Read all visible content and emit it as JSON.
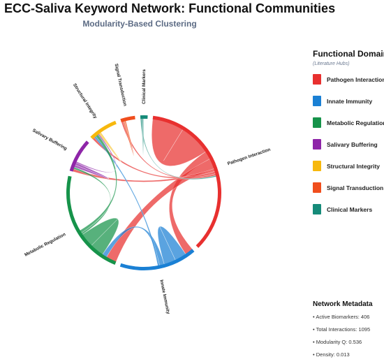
{
  "title": "ECC-Saliva Keyword Network: Functional Communities",
  "subtitle": "Modularity-Based Clustering",
  "legend": {
    "title": "Functional Domains",
    "subtitle": "(Literature Hubs)"
  },
  "metadata": {
    "title": "Network Metadata",
    "rows": [
      {
        "bullet": "•",
        "text": "Active Biomarkers: 406"
      },
      {
        "bullet": "•",
        "text": "Total Interactions: 1095"
      },
      {
        "bullet": "•",
        "text": "Modularity Q: 0.536"
      },
      {
        "bullet": "•",
        "text": "Density: 0.013"
      }
    ]
  },
  "chart_data": {
    "type": "chord",
    "groups": [
      {
        "name": "Pathogen Interaction",
        "color": "#e8302f",
        "share": 0.35
      },
      {
        "name": "Innate Immunity",
        "color": "#1a80d4",
        "share": 0.16
      },
      {
        "name": "Metabolic Regulation",
        "color": "#16934a",
        "share": 0.22
      },
      {
        "name": "Salivary Buffering",
        "color": "#8e25a8",
        "share": 0.07
      },
      {
        "name": "Structural Integrity",
        "color": "#f7b80d",
        "share": 0.06
      },
      {
        "name": "Signal Transduction",
        "color": "#f04e1d",
        "share": 0.03
      },
      {
        "name": "Clinical Markers",
        "color": "#168b79",
        "share": 0.015
      }
    ],
    "links": [
      {
        "source": 0,
        "target": 0,
        "value": 0.135
      },
      {
        "source": 0,
        "target": 1,
        "value": 0.035
      },
      {
        "source": 0,
        "target": 2,
        "value": 0.045
      },
      {
        "source": 0,
        "target": 3,
        "value": 0.012
      },
      {
        "source": 0,
        "target": 4,
        "value": 0.01
      },
      {
        "source": 0,
        "target": 5,
        "value": 0.008
      },
      {
        "source": 1,
        "target": 1,
        "value": 0.05
      },
      {
        "source": 1,
        "target": 2,
        "value": 0.02
      },
      {
        "source": 1,
        "target": 4,
        "value": 0.008
      },
      {
        "source": 2,
        "target": 2,
        "value": 0.06
      },
      {
        "source": 2,
        "target": 3,
        "value": 0.008
      },
      {
        "source": 2,
        "target": 4,
        "value": 0.012
      },
      {
        "source": 3,
        "target": 3,
        "value": 0.01
      },
      {
        "source": 3,
        "target": 4,
        "value": 0.005
      },
      {
        "source": 4,
        "target": 4,
        "value": 0.005
      },
      {
        "source": 5,
        "target": 5,
        "value": 0.006
      },
      {
        "source": 6,
        "target": 0,
        "value": 0.005
      },
      {
        "source": 6,
        "target": 6,
        "value": 0.004
      }
    ]
  }
}
